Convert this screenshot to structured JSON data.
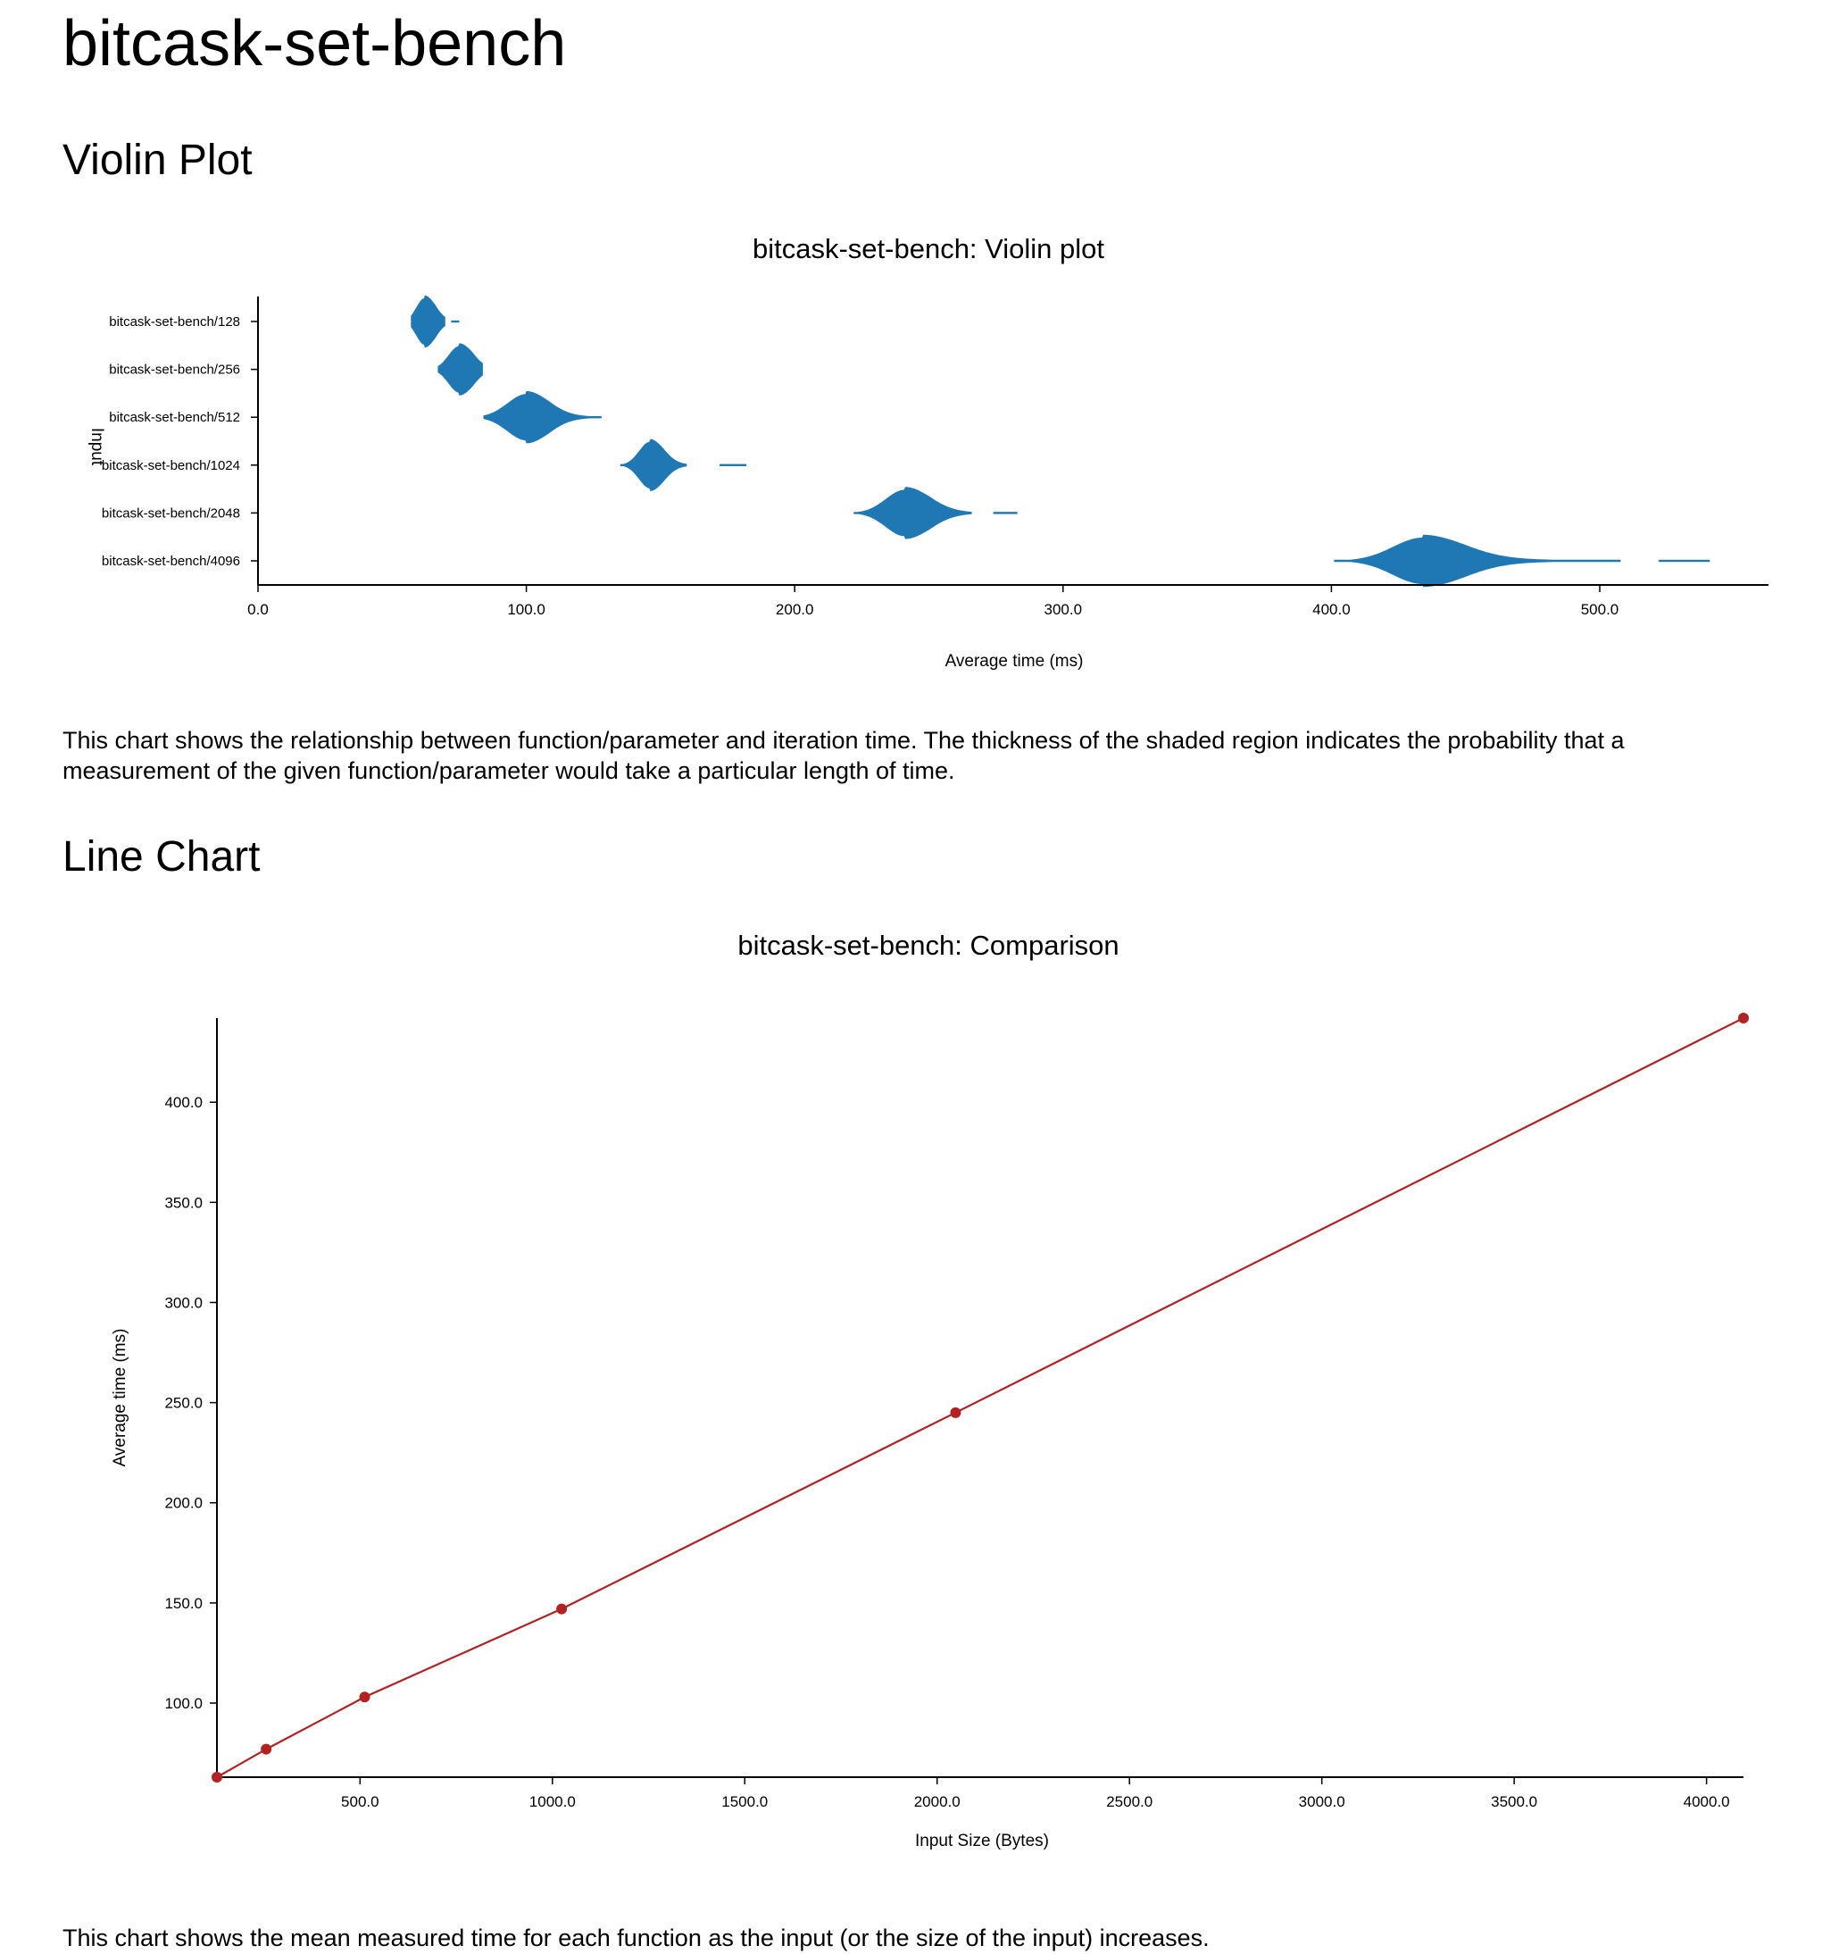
{
  "page": {
    "title": "bitcask-set-bench",
    "violin_heading": "Violin Plot",
    "violin_description": "This chart shows the relationship between function/parameter and iteration time. The thickness of the shaded region indicates the probability that a measurement of the given function/parameter would take a particular length of time.",
    "line_heading": "Line Chart",
    "line_description": "This chart shows the mean measured time for each function as the input (or the size of the input) increases."
  },
  "chart_data": [
    {
      "type": "violin",
      "title": "bitcask-set-bench: Violin plot",
      "xlabel": "Average time (ms)",
      "ylabel": "Input",
      "xlim": [
        0,
        560
      ],
      "xticks": [
        0,
        100,
        200,
        300,
        400,
        500
      ],
      "xtick_labels": [
        "0.0",
        "100.0",
        "200.0",
        "300.0",
        "400.0",
        "500.0"
      ],
      "color": "#1f78b4",
      "categories": [
        "bitcask-set-bench/128",
        "bitcask-set-bench/256",
        "bitcask-set-bench/512",
        "bitcask-set-bench/1024",
        "bitcask-set-bench/2048",
        "bitcask-set-bench/4096"
      ],
      "distributions": [
        {
          "name": "bitcask-set-bench/128",
          "mode": 62,
          "spread_left": 3,
          "spread_right": 4,
          "min": 57,
          "tail_end": 70,
          "outliers": [
            [
              72,
              75
            ]
          ]
        },
        {
          "name": "bitcask-set-bench/256",
          "mode": 75,
          "spread_left": 4,
          "spread_right": 5,
          "min": 67,
          "tail_end": 84,
          "outliers": []
        },
        {
          "name": "bitcask-set-bench/512",
          "mode": 100,
          "spread_left": 7,
          "spread_right": 8,
          "min": 84,
          "tail_end": 128,
          "outliers": []
        },
        {
          "name": "bitcask-set-bench/1024",
          "mode": 146,
          "spread_left": 4,
          "spread_right": 5,
          "min": 135,
          "tail_end": 160,
          "outliers": [
            [
              172,
              182
            ]
          ]
        },
        {
          "name": "bitcask-set-bench/2048",
          "mode": 241,
          "spread_left": 7,
          "spread_right": 9,
          "min": 222,
          "tail_end": 266,
          "outliers": [
            [
              274,
              283
            ]
          ]
        },
        {
          "name": "bitcask-set-bench/4096",
          "mode": 434,
          "spread_left": 11,
          "spread_right": 15,
          "min": 401,
          "tail_end": 508,
          "outliers": [
            [
              522,
              541
            ]
          ]
        }
      ]
    },
    {
      "type": "line",
      "title": "bitcask-set-bench: Comparison",
      "xlabel": "Input Size (Bytes)",
      "ylabel": "Average time (ms)",
      "xlim": [
        128,
        4096
      ],
      "ylim": [
        63,
        442
      ],
      "xticks": [
        500,
        1000,
        1500,
        2000,
        2500,
        3000,
        3500,
        4000
      ],
      "xtick_labels": [
        "500.0",
        "1000.0",
        "1500.0",
        "2000.0",
        "2500.0",
        "3000.0",
        "3500.0",
        "4000.0"
      ],
      "yticks": [
        100,
        150,
        200,
        250,
        300,
        350,
        400
      ],
      "ytick_labels": [
        "100.0",
        "150.0",
        "200.0",
        "250.0",
        "300.0",
        "350.0",
        "400.0"
      ],
      "color": "#b22222",
      "x": [
        128,
        256,
        512,
        1024,
        2048,
        4096
      ],
      "y": [
        63,
        77,
        103,
        147,
        245,
        442
      ]
    }
  ]
}
